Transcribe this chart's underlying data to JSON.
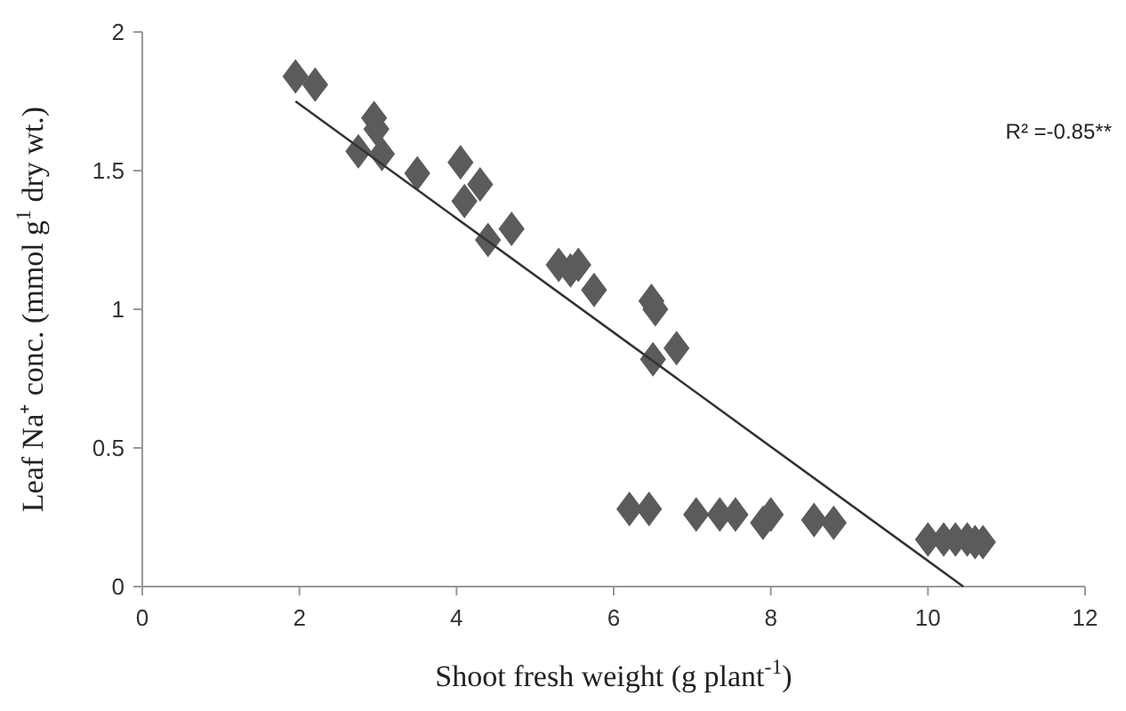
{
  "chart_data": {
    "type": "scatter",
    "xlabel": "Shoot fresh weight (g plant$^{-1}$)",
    "ylabel": "Leaf Na⁺ conc. (mmol g$^{1}$ dry wt.)",
    "xlim": [
      0,
      12
    ],
    "xticks": [
      0,
      2,
      4,
      6,
      8,
      10,
      12
    ],
    "ylim": [
      0,
      2
    ],
    "yticks": [
      0,
      0.5,
      1,
      1.5,
      2
    ],
    "grid": false,
    "marker": "diamond",
    "annotations": [
      "R² =-0.85**"
    ],
    "series": [
      {
        "color": "#5b5b5b",
        "x": [
          1.95,
          2.2,
          2.75,
          2.95,
          2.98,
          3.05,
          3.5,
          4.05,
          4.1,
          4.3,
          4.4,
          4.7,
          5.3,
          5.45,
          5.55,
          5.75,
          6.48,
          6.53,
          6.5,
          6.8,
          6.2,
          6.45,
          7.05,
          7.35,
          7.55,
          7.9,
          8.0,
          8.55,
          8.8,
          10.0,
          10.2,
          10.35,
          10.5,
          10.6,
          10.7
        ],
        "values": [
          1.84,
          1.81,
          1.57,
          1.69,
          1.65,
          1.56,
          1.49,
          1.53,
          1.39,
          1.45,
          1.25,
          1.29,
          1.16,
          1.14,
          1.16,
          1.07,
          1.03,
          1.0,
          0.82,
          0.86,
          0.28,
          0.28,
          0.26,
          0.26,
          0.26,
          0.23,
          0.26,
          0.24,
          0.23,
          0.17,
          0.17,
          0.17,
          0.17,
          0.16,
          0.16
        ]
      },
      {
        "type": "line",
        "color": "#333333",
        "marker": "none",
        "line_style": "solid",
        "x": [
          1.95,
          10.45
        ],
        "values": [
          1.75,
          0.0
        ]
      }
    ]
  }
}
